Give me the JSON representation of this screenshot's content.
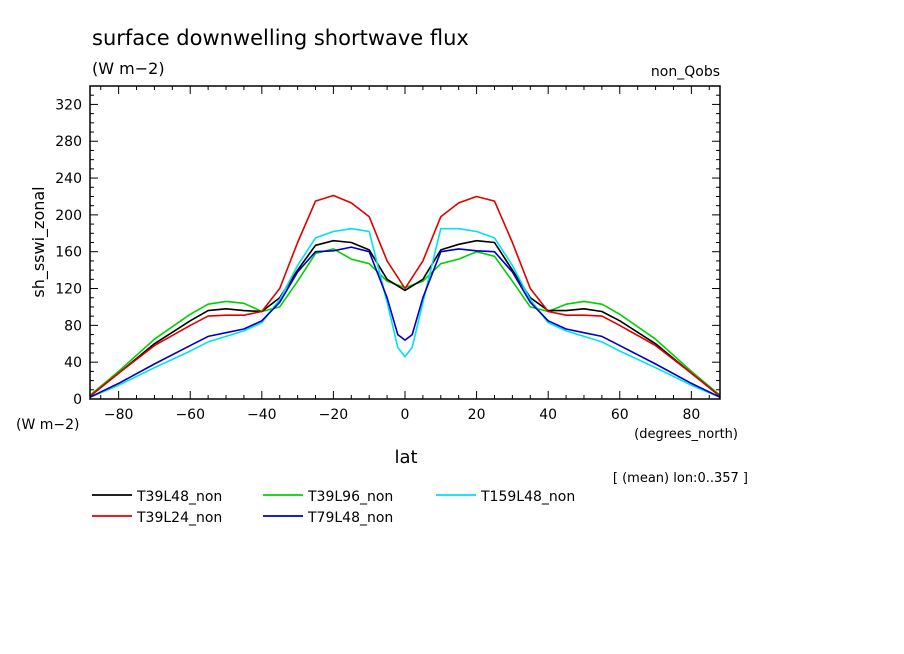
{
  "chart_data": {
    "type": "line",
    "title": "surface downwelling shortwave flux",
    "units_label": "(W m−2)",
    "top_right_label": "non_Qobs",
    "ylabel": "sh_sswi_zonal",
    "y_units": "(W m−2)",
    "xlabel": "lat",
    "x_units": "(degrees_north)",
    "note": "[ (mean) lon:0..357 ]",
    "xlim": [
      -88,
      88
    ],
    "ylim": [
      0,
      340
    ],
    "xticks": [
      -80,
      -60,
      -40,
      -20,
      0,
      20,
      40,
      60,
      80
    ],
    "xtick_labels": [
      "−80",
      "−60",
      "−40",
      "−20",
      "0",
      "20",
      "40",
      "60",
      "80"
    ],
    "yticks": [
      0,
      40,
      80,
      120,
      160,
      200,
      240,
      280,
      320
    ],
    "series": [
      {
        "name": "T39L48_non",
        "color": "#000000",
        "x": [
          -88,
          -80,
          -70,
          -60,
          -55,
          -50,
          -45,
          -40,
          -35,
          -30,
          -25,
          -20,
          -15,
          -10,
          -5,
          0,
          5,
          10,
          15,
          20,
          25,
          30,
          35,
          40,
          45,
          50,
          55,
          60,
          70,
          80,
          88
        ],
        "y": [
          3,
          28,
          60,
          85,
          96,
          98,
          96,
          95,
          110,
          140,
          167,
          172,
          170,
          162,
          130,
          118,
          130,
          162,
          168,
          172,
          170,
          140,
          110,
          96,
          96,
          98,
          95,
          85,
          60,
          28,
          3
        ]
      },
      {
        "name": "T39L24_non",
        "color": "#e00000",
        "x": [
          -88,
          -80,
          -70,
          -60,
          -55,
          -50,
          -45,
          -40,
          -35,
          -30,
          -25,
          -20,
          -15,
          -10,
          -5,
          0,
          5,
          10,
          15,
          20,
          25,
          30,
          35,
          40,
          45,
          50,
          55,
          60,
          70,
          80,
          88
        ],
        "y": [
          3,
          28,
          58,
          80,
          90,
          91,
          91,
          95,
          120,
          170,
          215,
          221,
          213,
          198,
          150,
          120,
          150,
          198,
          213,
          220,
          215,
          170,
          120,
          95,
          91,
          91,
          90,
          80,
          58,
          28,
          3
        ]
      },
      {
        "name": "T39L96_non",
        "color": "#00d000",
        "x": [
          -88,
          -80,
          -70,
          -60,
          -55,
          -50,
          -45,
          -40,
          -35,
          -30,
          -25,
          -20,
          -15,
          -10,
          -5,
          0,
          5,
          10,
          15,
          20,
          25,
          30,
          35,
          40,
          45,
          50,
          55,
          60,
          70,
          80,
          88
        ],
        "y": [
          4,
          30,
          65,
          92,
          103,
          106,
          104,
          95,
          100,
          128,
          158,
          163,
          152,
          147,
          128,
          121,
          128,
          147,
          152,
          160,
          155,
          128,
          100,
          95,
          103,
          106,
          103,
          92,
          65,
          30,
          4
        ]
      },
      {
        "name": "T79L48_non",
        "color": "#0000c0",
        "x": [
          -88,
          -80,
          -70,
          -60,
          -55,
          -50,
          -45,
          -40,
          -35,
          -30,
          -25,
          -20,
          -15,
          -10,
          -5,
          -2,
          0,
          2,
          5,
          10,
          15,
          20,
          25,
          30,
          35,
          40,
          45,
          50,
          55,
          60,
          70,
          80,
          88
        ],
        "y": [
          2,
          17,
          38,
          58,
          68,
          72,
          76,
          85,
          105,
          138,
          160,
          161,
          165,
          160,
          110,
          70,
          64,
          70,
          110,
          160,
          163,
          161,
          160,
          138,
          105,
          85,
          76,
          72,
          68,
          58,
          38,
          17,
          2
        ]
      },
      {
        "name": "T159L48_non",
        "color": "#00e0f0",
        "x": [
          -88,
          -80,
          -70,
          -60,
          -55,
          -50,
          -45,
          -40,
          -35,
          -30,
          -25,
          -20,
          -15,
          -10,
          -5,
          -2,
          0,
          2,
          5,
          10,
          15,
          20,
          25,
          30,
          35,
          40,
          45,
          50,
          55,
          60,
          70,
          80,
          88
        ],
        "y": [
          2,
          15,
          34,
          52,
          62,
          68,
          74,
          83,
          108,
          145,
          175,
          182,
          185,
          182,
          105,
          56,
          46,
          56,
          105,
          185,
          185,
          182,
          175,
          145,
          108,
          83,
          74,
          68,
          62,
          52,
          34,
          15,
          2
        ]
      }
    ]
  }
}
